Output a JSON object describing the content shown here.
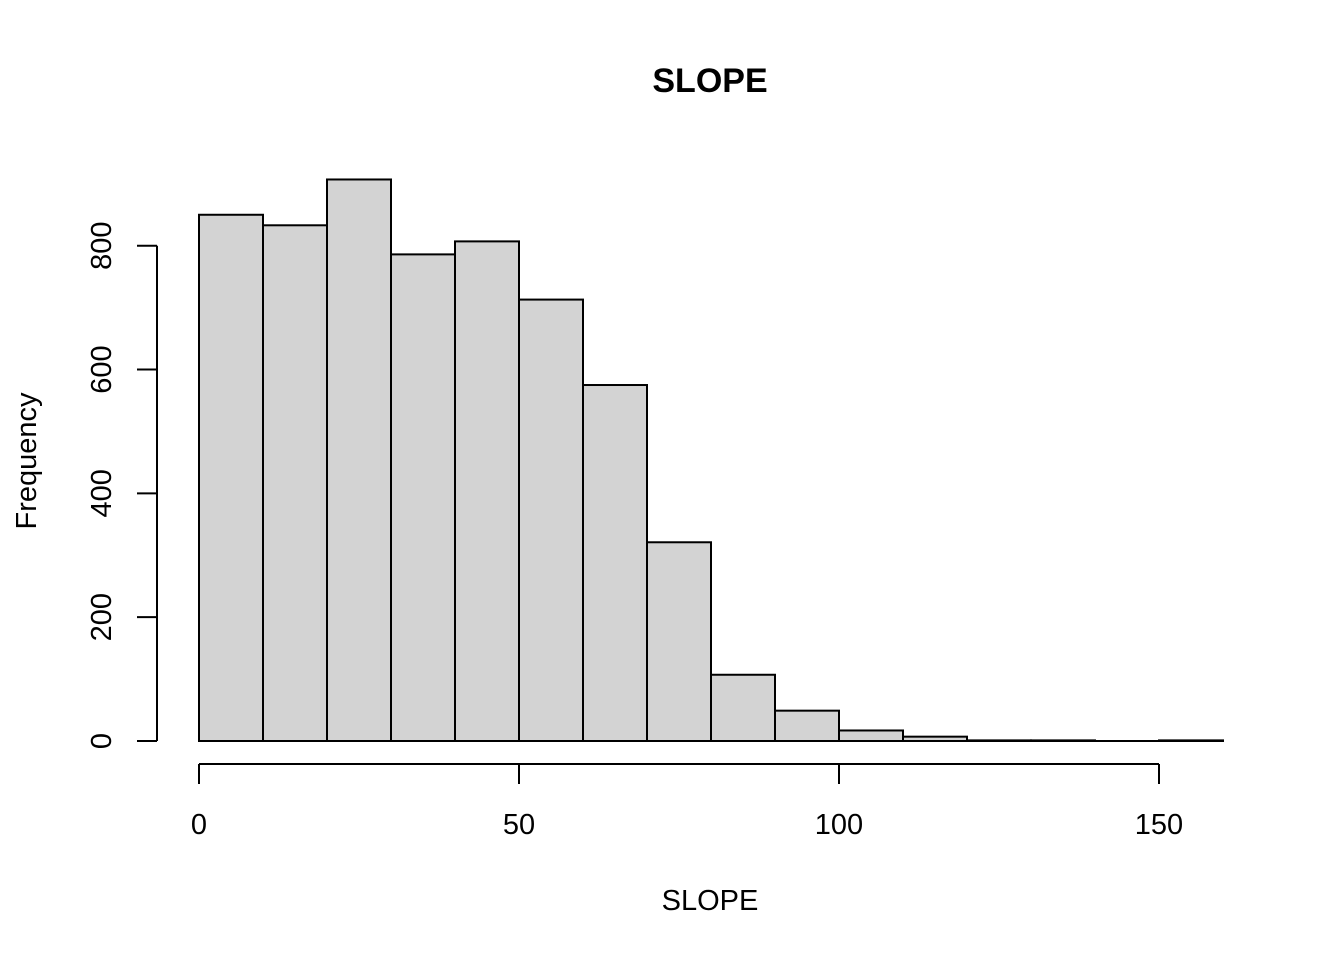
{
  "chart_data": {
    "type": "bar",
    "title": "SLOPE",
    "xlabel": "SLOPE",
    "ylabel": "Frequency",
    "bin_edges": [
      0,
      10,
      20,
      30,
      40,
      50,
      60,
      70,
      80,
      90,
      100,
      110,
      120,
      130,
      140,
      150,
      160
    ],
    "values": [
      850,
      833,
      907,
      786,
      807,
      713,
      575,
      321,
      107,
      49,
      17,
      7,
      1,
      1,
      0,
      1
    ],
    "xlim": [
      0,
      160
    ],
    "ylim": [
      0,
      907
    ],
    "x_ticks": [
      0,
      50,
      100,
      150
    ],
    "y_ticks": [
      0,
      200,
      400,
      600,
      800
    ],
    "x_tick_labels": [
      "0",
      "50",
      "100",
      "150"
    ],
    "y_tick_labels": [
      "0",
      "200",
      "400",
      "600",
      "800"
    ],
    "bar_fill": "#d3d3d3",
    "bar_stroke": "#000000",
    "grid": false,
    "legend": "none"
  }
}
